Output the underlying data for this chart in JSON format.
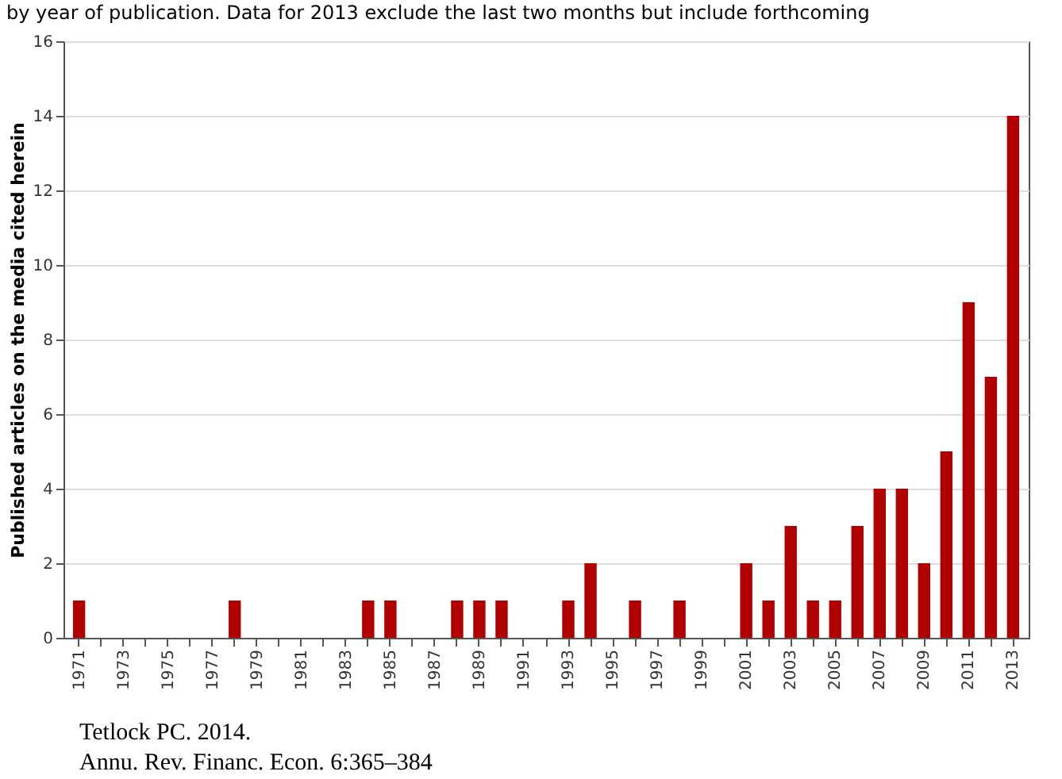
{
  "chart_data": {
    "type": "bar",
    "title": "by year of publication. Data for 2013 exclude the last two months but include forthcoming",
    "ylabel": "Published articles on the media cited herein",
    "categories": [
      "1971",
      null,
      "1973",
      null,
      "1975",
      null,
      "1977",
      null,
      "1979",
      null,
      "1981",
      null,
      "1983",
      null,
      "1985",
      null,
      "1987",
      null,
      "1989",
      null,
      "1991",
      null,
      "1993",
      null,
      "1995",
      null,
      "1997",
      null,
      "1999",
      null,
      "2001",
      null,
      "2003",
      null,
      "2005",
      null,
      "2007",
      null,
      "2009",
      null,
      "2011",
      null,
      "2013"
    ],
    "values": [
      1,
      0,
      0,
      0,
      0,
      0,
      0,
      1,
      0,
      0,
      0,
      0,
      0,
      1,
      1,
      0,
      0,
      1,
      1,
      1,
      0,
      0,
      1,
      2,
      0,
      1,
      0,
      1,
      0,
      0,
      2,
      1,
      3,
      1,
      1,
      3,
      4,
      4,
      2,
      5,
      9,
      7,
      14
    ],
    "color": "#b00000",
    "ylim": [
      0,
      16
    ],
    "yticks": [
      0,
      2,
      4,
      6,
      8,
      10,
      12,
      14,
      16
    ],
    "grid": "y",
    "annotations": [
      "Tetlock PC. 2014.",
      "Annu. Rev. Financ. Econ. 6:365–384"
    ]
  }
}
